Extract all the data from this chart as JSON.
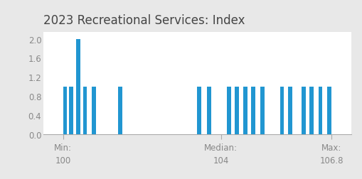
{
  "title": "2023 Recreational Services: Index",
  "bar_color": "#2196d1",
  "background_color": "#e8e8e8",
  "plot_bg_color": "#ffffff",
  "xlim": [
    99.5,
    107.3
  ],
  "ylim": [
    0,
    2.15
  ],
  "yticks": [
    0.0,
    0.4,
    0.8,
    1.2,
    1.6,
    2.0
  ],
  "x_labels": [
    {
      "text": "Min:\n100",
      "x": 100.0
    },
    {
      "text": "Median:\n104",
      "x": 104.0
    },
    {
      "text": "Max:\n106.8",
      "x": 106.8
    }
  ],
  "bars": [
    {
      "x": 100.05,
      "height": 1.0
    },
    {
      "x": 100.2,
      "height": 1.0
    },
    {
      "x": 100.38,
      "height": 2.0
    },
    {
      "x": 100.55,
      "height": 1.0
    },
    {
      "x": 100.78,
      "height": 1.0
    },
    {
      "x": 101.45,
      "height": 1.0
    },
    {
      "x": 103.45,
      "height": 1.0
    },
    {
      "x": 103.7,
      "height": 1.0
    },
    {
      "x": 104.2,
      "height": 1.0
    },
    {
      "x": 104.4,
      "height": 1.0
    },
    {
      "x": 104.62,
      "height": 1.0
    },
    {
      "x": 104.82,
      "height": 1.0
    },
    {
      "x": 105.05,
      "height": 1.0
    },
    {
      "x": 105.55,
      "height": 1.0
    },
    {
      "x": 105.75,
      "height": 1.0
    },
    {
      "x": 106.1,
      "height": 1.0
    },
    {
      "x": 106.3,
      "height": 1.0
    },
    {
      "x": 106.52,
      "height": 1.0
    },
    {
      "x": 106.75,
      "height": 1.0
    }
  ],
  "bar_width": 0.1,
  "title_fontsize": 12,
  "tick_fontsize": 8.5,
  "xlabel_fontsize": 8.5,
  "tick_color": "#888888",
  "title_color": "#444444",
  "spine_color": "#aaaaaa"
}
